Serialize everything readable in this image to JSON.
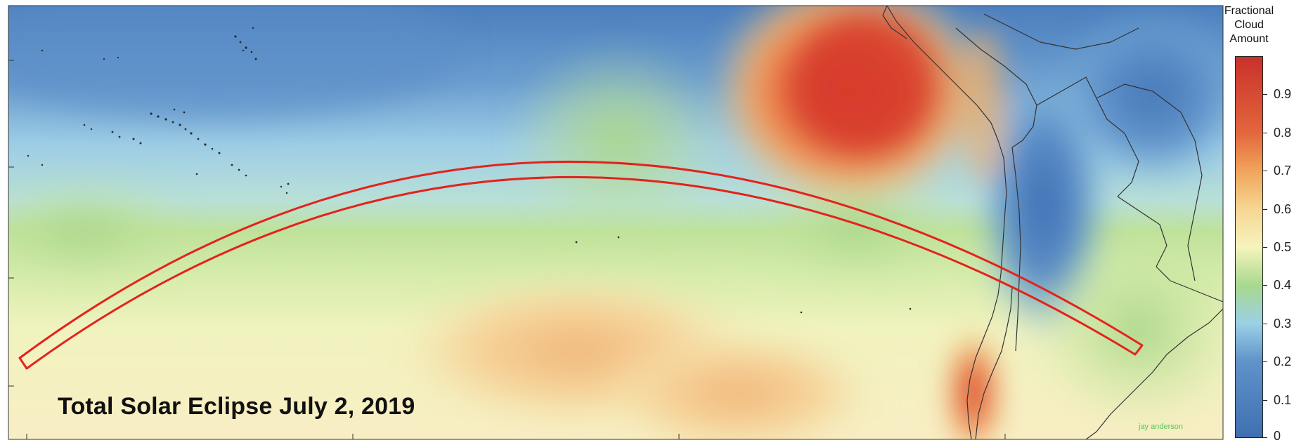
{
  "map": {
    "title": "Total Solar Eclipse July 2, 2019",
    "credit": "jay anderson",
    "legend": {
      "title_lines": [
        "Fractional",
        "Cloud",
        "Amount"
      ],
      "ticks": [
        "0",
        "0.1",
        "0.2",
        "0.3",
        "0.4",
        "0.5",
        "0.6",
        "0.7",
        "0.8",
        "0.9"
      ],
      "colors": {
        "low": "#3f6fb0",
        "mid_low": "#7fbfe0",
        "mid": "#f6f4bd",
        "mid_high": "#f0a45c",
        "high": "#d0362a"
      }
    },
    "eclipse_path_color": "#e3231c",
    "land_outline_color": "#333333"
  }
}
